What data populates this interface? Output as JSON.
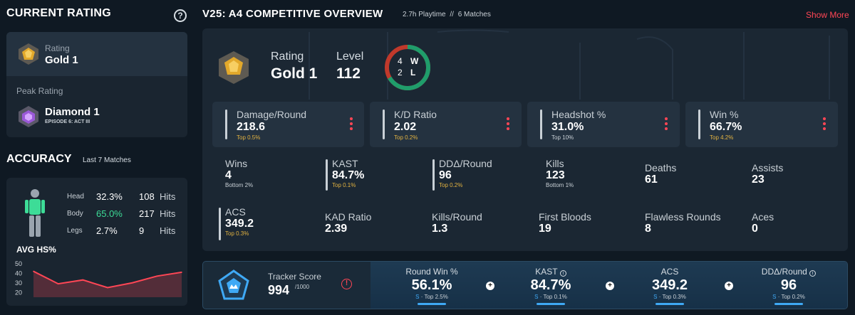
{
  "left": {
    "current_rating_title": "CURRENT RATING",
    "rating_label": "Rating",
    "rating_value": "Gold 1",
    "peak_label": "Peak Rating",
    "peak_value": "Diamond 1",
    "peak_episode": "EPISODE 6: ACT III",
    "accuracy_title": "ACCURACY",
    "accuracy_sub": "Last 7 Matches",
    "rows": [
      {
        "part": "Head",
        "pct": "32.3%",
        "hits": "108",
        "unit": "Hits"
      },
      {
        "part": "Body",
        "pct": "65.0%",
        "hits": "217",
        "unit": "Hits"
      },
      {
        "part": "Legs",
        "pct": "2.7%",
        "hits": "9",
        "unit": "Hits"
      }
    ],
    "avg_hs_title": "AVG HS%",
    "chart_ticks": [
      "50",
      "40",
      "30",
      "20"
    ]
  },
  "chart_data": {
    "type": "line",
    "title": "AVG HS%",
    "x": [
      1,
      2,
      3,
      4,
      5,
      6,
      7
    ],
    "values": [
      42,
      29,
      33,
      25,
      30,
      37,
      41
    ],
    "ylim": [
      15,
      55
    ],
    "yticks": [
      50,
      40,
      30,
      20
    ]
  },
  "header": {
    "title": "V25: A4 COMPETITIVE OVERVIEW",
    "playtime": "2.7h Playtime",
    "separator": "//",
    "matches": "6 Matches",
    "show_more": "Show More"
  },
  "overview": {
    "rating_label": "Rating",
    "rating_value": "Gold 1",
    "level_label": "Level",
    "level_value": "112",
    "wins": "4",
    "losses": "2",
    "w": "W",
    "l": "L",
    "win_fraction": 0.667
  },
  "cards": [
    {
      "label": "Damage/Round",
      "value": "218.6",
      "top": "Top 0.5%"
    },
    {
      "label": "K/D Ratio",
      "value": "2.02",
      "top": "Top 0.2%"
    },
    {
      "label": "Headshot %",
      "value": "31.0%",
      "top": "Top 10%"
    },
    {
      "label": "Win %",
      "value": "66.7%",
      "top": "Top 4.2%"
    }
  ],
  "stats": [
    {
      "label": "Wins",
      "value": "4",
      "sub": "Bottom 2%"
    },
    {
      "label": "KAST",
      "value": "84.7%",
      "sub": "Top 0.1%"
    },
    {
      "label": "DDΔ/Round",
      "value": "96",
      "sub": "Top 0.2%"
    },
    {
      "label": "Kills",
      "value": "123",
      "sub": "Bottom 1%"
    },
    {
      "label": "Deaths",
      "value": "61"
    },
    {
      "label": "Assists",
      "value": "23"
    },
    {
      "label": "ACS",
      "value": "349.2",
      "sub": "Top 0.3%"
    },
    {
      "label": "KAD Ratio",
      "value": "2.39"
    },
    {
      "label": "Kills/Round",
      "value": "1.3"
    },
    {
      "label": "First Bloods",
      "value": "19"
    },
    {
      "label": "Flawless Rounds",
      "value": "8"
    },
    {
      "label": "Aces",
      "value": "0"
    }
  ],
  "tracker": {
    "label": "Tracker Score",
    "score": "994",
    "max": "/1000",
    "cells": [
      {
        "label": "Round Win %",
        "value": "56.1%",
        "grade": "S",
        "top": "· Top 2.5%"
      },
      {
        "label": "KAST",
        "value": "84.7%",
        "grade": "S",
        "top": "· Top 0.1%"
      },
      {
        "label": "ACS",
        "value": "349.2",
        "grade": "S",
        "top": "· Top 0.3%"
      },
      {
        "label": "DDΔ/Round",
        "value": "96",
        "grade": "S",
        "top": "· Top 0.2%"
      }
    ],
    "plus": "+"
  },
  "colors": {
    "accent": "#ff4655",
    "gold": "#e3b341",
    "win": "#1f9d6b",
    "loss": "#c0392b",
    "body_green": "#3ddc97",
    "tracker_blue": "#3fa9f5"
  }
}
